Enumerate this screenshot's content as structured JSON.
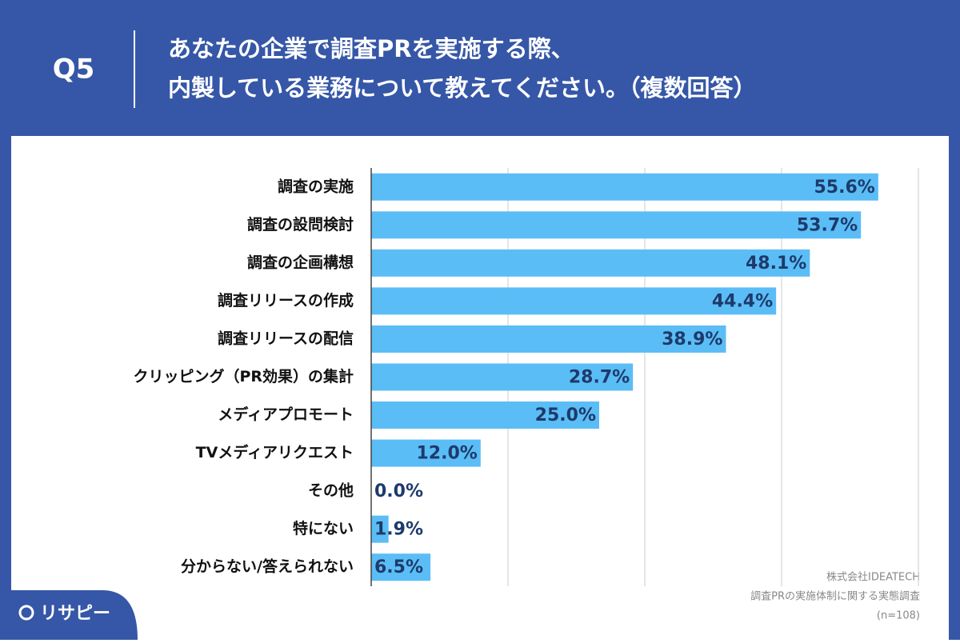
{
  "header": {
    "question": "Q5",
    "title_lines": [
      "あなたの企業で調査PRを実施する際、",
      "内製している業務について教えてください。（複数回答）"
    ]
  },
  "chart_data": {
    "type": "bar",
    "orientation": "horizontal",
    "categories": [
      "調査の実施",
      "調査の設問検討",
      "調査の企画構想",
      "調査リリースの作成",
      "調査リリースの配信",
      "クリッピング（PR効果）の集計",
      "メディアプロモート",
      "TVメディアリクエスト",
      "その他",
      "特にない",
      "分からない/答えられない"
    ],
    "values": [
      55.6,
      53.7,
      48.1,
      44.4,
      38.9,
      28.7,
      25.0,
      12.0,
      0.0,
      1.9,
      6.5
    ],
    "value_labels": [
      "55.6%",
      "53.7%",
      "48.1%",
      "44.4%",
      "38.9%",
      "28.7%",
      "25.0%",
      "12.0%",
      "0.0%",
      "1.9%",
      "6.5%"
    ],
    "color": "#5bbdf6",
    "xlim": [
      0,
      60
    ],
    "xticks": [
      0,
      15,
      30,
      45,
      60
    ],
    "grid": true
  },
  "source": [
    "株式会社IDEATECH",
    "調査PRの実施体制に関する実態調査",
    "(n=108)"
  ],
  "logo": "リサピー"
}
